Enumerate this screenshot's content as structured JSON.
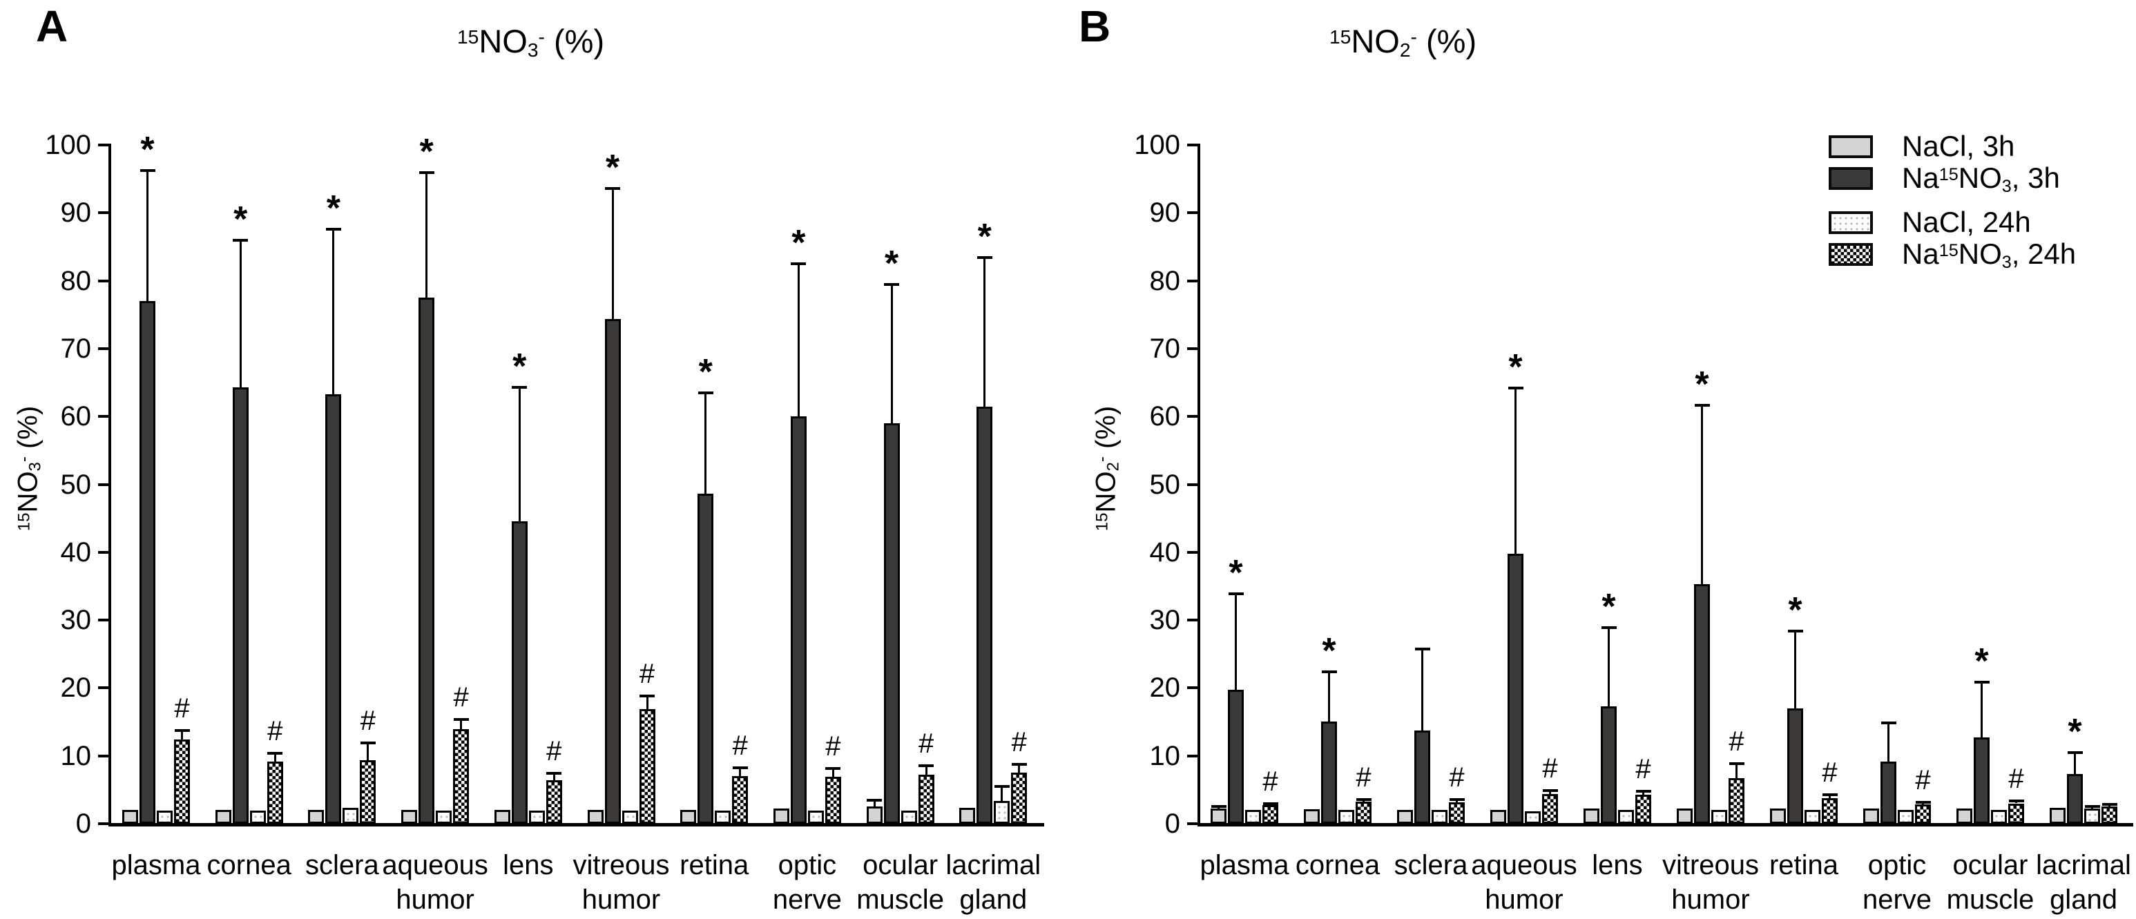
{
  "figure": {
    "background": "#ffffff",
    "axis_color": "#000000",
    "bar_colors": {
      "light": "#d4d4d4",
      "dark": "#3b3937",
      "dotted_dot": "#bdbdbd",
      "checker": "#000000"
    },
    "significance_symbols": {
      "vs_control": "*",
      "vs_3h": "#"
    }
  },
  "legend": {
    "position": "top-right",
    "entries": [
      {
        "style": "light",
        "label_rich": [
          [
            "",
            "NaCl, 3h"
          ]
        ]
      },
      {
        "style": "dark",
        "label_rich": [
          [
            "",
            "Na"
          ],
          [
            "sup",
            "15"
          ],
          [
            "",
            "NO"
          ],
          [
            "sub",
            "3"
          ],
          [
            "",
            ", 3h"
          ]
        ]
      },
      {
        "style": "dotted",
        "label_rich": [
          [
            "",
            "NaCl, 24h"
          ]
        ]
      },
      {
        "style": "checker",
        "label_rich": [
          [
            "",
            "Na"
          ],
          [
            "sup",
            "15"
          ],
          [
            "",
            "NO"
          ],
          [
            "sub",
            "3"
          ],
          [
            "",
            ", 24h"
          ]
        ]
      }
    ]
  },
  "chart_data": [
    {
      "type": "bar",
      "panel": "A",
      "title_rich": [
        [
          "sup",
          "15"
        ],
        [
          "",
          "NO"
        ],
        [
          "sub",
          "3"
        ],
        [
          "sup",
          "-"
        ],
        [
          "",
          " (%)"
        ]
      ],
      "ylabel_rich": [
        [
          "sup",
          "15"
        ],
        [
          "",
          "NO"
        ],
        [
          "sub",
          "3"
        ],
        [
          "sup",
          "-"
        ],
        [
          "",
          " (%)"
        ]
      ],
      "ylim": [
        0,
        100
      ],
      "ytick_step": 10,
      "grid": false,
      "categories": [
        "plasma",
        "cornea",
        "sclera",
        "aqueous\nhumor",
        "lens",
        "vitreous\nhumor",
        "retina",
        "optic\nnerve",
        "ocular\nmuscle",
        "lacrimal\ngland"
      ],
      "series": [
        {
          "name": "NaCl, 3h",
          "style": "light",
          "values": [
            2.0,
            2.0,
            2.0,
            2.0,
            2.0,
            2.0,
            2.0,
            2.2,
            2.5,
            2.3
          ],
          "errors": [
            0,
            0,
            0,
            0,
            0,
            0,
            0,
            0,
            1.0,
            0
          ],
          "sig": [
            "",
            "",
            "",
            "",
            "",
            "",
            "",
            "",
            "",
            ""
          ]
        },
        {
          "name": "Na15NO3, 3h",
          "style": "dark",
          "values": [
            77.0,
            64.3,
            63.3,
            77.5,
            44.6,
            74.4,
            48.6,
            60.0,
            59.0,
            61.4
          ],
          "errors": [
            19.2,
            21.7,
            24.3,
            18.4,
            19.7,
            19.2,
            14.9,
            22.5,
            20.4,
            22.0
          ],
          "sig": [
            "*",
            "*",
            "*",
            "*",
            "*",
            "*",
            "*",
            "*",
            "*",
            "*"
          ]
        },
        {
          "name": "NaCl, 24h",
          "style": "dotted",
          "values": [
            1.9,
            1.9,
            2.3,
            1.9,
            1.9,
            1.9,
            1.9,
            1.9,
            1.9,
            3.4
          ],
          "errors": [
            0,
            0,
            0,
            0,
            0,
            0,
            0,
            0,
            0,
            2.1
          ],
          "sig": [
            "",
            "",
            "",
            "",
            "",
            "",
            "",
            "",
            "",
            ""
          ]
        },
        {
          "name": "Na15NO3, 24h",
          "style": "checker",
          "values": [
            12.4,
            9.2,
            9.4,
            13.9,
            6.4,
            16.9,
            7.0,
            6.9,
            7.2,
            7.5
          ],
          "errors": [
            1.3,
            1.2,
            2.5,
            1.5,
            1.0,
            1.9,
            1.2,
            1.2,
            1.3,
            1.2
          ],
          "sig": [
            "#",
            "#",
            "#",
            "#",
            "#",
            "#",
            "#",
            "#",
            "#",
            "#"
          ]
        }
      ]
    },
    {
      "type": "bar",
      "panel": "B",
      "title_rich": [
        [
          "sup",
          "15"
        ],
        [
          "",
          "NO"
        ],
        [
          "sub",
          "2"
        ],
        [
          "sup",
          "-"
        ],
        [
          "",
          " (%)"
        ]
      ],
      "ylabel_rich": [
        [
          "sup",
          "15"
        ],
        [
          "",
          "NO"
        ],
        [
          "sub",
          "2"
        ],
        [
          "sup",
          "-"
        ],
        [
          "",
          " (%)"
        ]
      ],
      "ylim": [
        0,
        100
      ],
      "ytick_step": 10,
      "grid": false,
      "categories": [
        "plasma",
        "cornea",
        "sclera",
        "aqueous\nhumor",
        "lens",
        "vitreous\nhumor",
        "retina",
        "optic\nnerve",
        "ocular\nmuscle",
        "lacrimal\ngland"
      ],
      "series": [
        {
          "name": "NaCl, 3h",
          "style": "light",
          "values": [
            2.2,
            2.1,
            2.0,
            2.0,
            2.2,
            2.2,
            2.2,
            2.2,
            2.2,
            2.3
          ],
          "errors": [
            0.3,
            0,
            0,
            0,
            0,
            0,
            0,
            0,
            0,
            0
          ],
          "sig": [
            "",
            "",
            "",
            "",
            "",
            "",
            "",
            "",
            "",
            ""
          ]
        },
        {
          "name": "Na15NO3, 3h",
          "style": "dark",
          "values": [
            19.7,
            15.1,
            13.7,
            39.8,
            17.3,
            35.3,
            17.0,
            9.2,
            12.7,
            7.3
          ],
          "errors": [
            14.2,
            7.3,
            12.0,
            24.4,
            11.6,
            26.3,
            11.4,
            5.7,
            8.2,
            3.2
          ],
          "sig": [
            "*",
            "*",
            "",
            "*",
            "*",
            "*",
            "*",
            "",
            "*",
            "*"
          ]
        },
        {
          "name": "NaCl, 24h",
          "style": "dotted",
          "values": [
            2.0,
            2.0,
            2.0,
            1.8,
            2.0,
            2.0,
            2.0,
            2.0,
            2.0,
            2.2
          ],
          "errors": [
            0,
            0,
            0,
            0,
            0,
            0,
            0,
            0,
            0,
            0.3
          ],
          "sig": [
            "",
            "",
            "",
            "",
            "",
            "",
            "",
            "",
            "",
            ""
          ]
        },
        {
          "name": "Na15NO3, 24h",
          "style": "checker",
          "values": [
            2.7,
            3.3,
            3.2,
            4.4,
            4.3,
            6.7,
            3.8,
            2.8,
            3.0,
            2.5
          ],
          "errors": [
            0.3,
            0.3,
            0.4,
            0.5,
            0.5,
            2.2,
            0.5,
            0.4,
            0.4,
            0.3
          ],
          "sig": [
            "#",
            "#",
            "#",
            "#",
            "#",
            "#",
            "#",
            "#",
            "#",
            ""
          ]
        }
      ]
    }
  ]
}
